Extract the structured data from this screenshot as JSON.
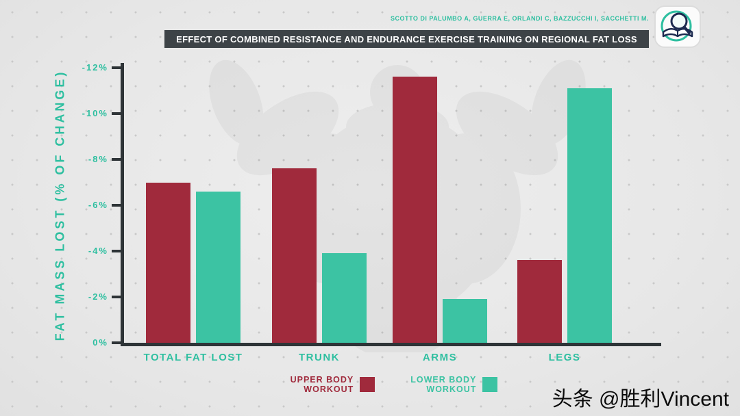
{
  "header": {
    "citation": "SCOTTO DI PALUMBO A, GUERRA E, ORLANDI C, BAZZUCCHI I, SACCHETTI M."
  },
  "footer": {
    "watermark": "头条 @胜利Vincent"
  },
  "icons": {
    "top_right": "book-magnifier-icon",
    "background": "bodybuilder-silhouette"
  },
  "colors": {
    "background": "#e8e8e8",
    "upper_body_red": "#a02a3c",
    "lower_body_teal": "#3cc3a3",
    "accent_teal_text": "#2ebfa0",
    "axis_dark": "#2e3437",
    "title_bar_bg": "#3d4347",
    "title_text": "#ffffff",
    "watermark_text": "#0b0b0b"
  },
  "chart_data": {
    "type": "bar",
    "title": "EFFECT OF COMBINED RESISTANCE AND ENDURANCE EXERCISE TRAINING ON REGIONAL FAT LOSS",
    "ylabel": "FAT MASS LOST (% OF CHANGE)",
    "xlabel": "",
    "categories": [
      "TOTAL FAT LOST",
      "TRUNK",
      "ARMS",
      "LEGS"
    ],
    "series": [
      {
        "name": "UPPER BODY WORKOUT",
        "color": "#a02a3c",
        "values": [
          -7.0,
          -7.6,
          -11.6,
          -3.6
        ]
      },
      {
        "name": "LOWER BODY WORKOUT",
        "color": "#3cc3a3",
        "values": [
          -6.6,
          -3.9,
          -1.9,
          -11.1
        ]
      }
    ],
    "ytick_labels": [
      "-12%",
      "-10%",
      "-8%",
      "-6%",
      "-4%",
      "-2%",
      "0%"
    ],
    "ylim": [
      0,
      -12
    ],
    "grid": false,
    "legend_position": "bottom"
  }
}
